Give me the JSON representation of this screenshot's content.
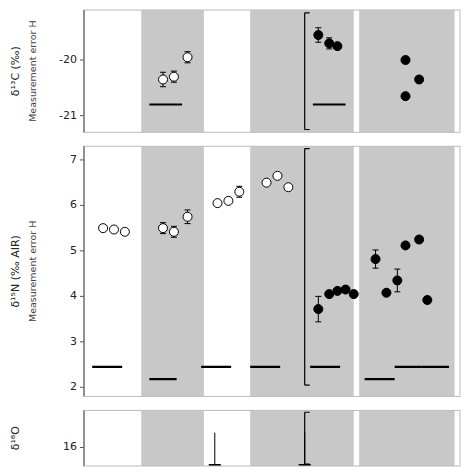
{
  "chart_data": [
    {
      "type": "scatter",
      "ylabel": "δ¹³C (‰)",
      "annotations": [
        "Measurement error H"
      ],
      "xlim": [
        0.4,
        7.3
      ],
      "ylim": [
        -21.3,
        -19.1
      ],
      "yticks": [
        -21,
        -20
      ],
      "tick_labels": "y",
      "bands": {
        "color": "#c8c8c8",
        "ranges": [
          [
            1.45,
            2.6
          ],
          [
            3.45,
            5.35
          ],
          [
            5.45,
            7.2
          ]
        ]
      },
      "series": [
        {
          "marker": "circle-open",
          "color": "#000000",
          "x": [
            1.85,
            2.05,
            2.3
          ],
          "values": [
            -20.35,
            -20.3,
            -19.95
          ],
          "errors": [
            0.13,
            0.1,
            0.1
          ]
        },
        {
          "marker": "circle",
          "color": "#000000",
          "x": [
            4.7,
            4.9,
            5.05
          ],
          "values": [
            -19.55,
            -19.7,
            -19.75
          ],
          "errors": [
            0.13,
            0.1,
            0.0
          ]
        },
        {
          "marker": "circle",
          "color": "#000000",
          "x": [
            6.3,
            6.55,
            6.3
          ],
          "values": [
            -20.0,
            -20.35,
            -20.65
          ],
          "errors": [
            0.0,
            0.0,
            0.0
          ]
        }
      ],
      "segments": [
        {
          "x": [
            1.6,
            2.2
          ],
          "y": -20.8
        },
        {
          "x": [
            4.6,
            5.2
          ],
          "y": -20.8
        }
      ],
      "bracket": {
        "x": 4.45,
        "y": [
          -21.25,
          -19.15
        ]
      }
    },
    {
      "type": "scatter",
      "ylabel": "δ¹⁵N (‰ AIR)",
      "annotations": [
        "Measurement error H"
      ],
      "xlim": [
        0.4,
        7.3
      ],
      "ylim": [
        1.8,
        7.3
      ],
      "yticks": [
        2,
        3,
        4,
        5,
        6,
        7
      ],
      "tick_labels": "y",
      "bands": {
        "color": "#c8c8c8",
        "ranges": [
          [
            1.45,
            2.6
          ],
          [
            3.45,
            5.35
          ],
          [
            5.45,
            7.2
          ]
        ]
      },
      "series": [
        {
          "marker": "circle-open",
          "color": "#000000",
          "x": [
            0.75,
            0.95,
            1.15,
            1.85,
            2.05,
            2.3,
            2.85,
            3.05,
            3.25,
            3.75,
            3.95,
            4.15
          ],
          "values": [
            5.5,
            5.47,
            5.42,
            5.5,
            5.42,
            5.75,
            6.05,
            6.1,
            6.3,
            6.5,
            6.65,
            6.4
          ],
          "errors": [
            0.0,
            0.0,
            0.0,
            0.12,
            0.12,
            0.15,
            0.0,
            0.0,
            0.12,
            0.0,
            0.0,
            0.0
          ]
        },
        {
          "marker": "circle",
          "color": "#000000",
          "x": [
            4.7,
            4.9,
            5.05,
            5.2,
            5.35,
            5.75,
            5.95,
            6.15,
            6.3,
            6.55,
            6.7
          ],
          "values": [
            3.72,
            4.05,
            4.12,
            4.15,
            4.05,
            4.82,
            4.08,
            4.35,
            5.12,
            5.25,
            3.92
          ],
          "errors": [
            0.28,
            0.0,
            0.0,
            0.0,
            0.0,
            0.2,
            0.0,
            0.25,
            0.0,
            0.0,
            0.0
          ]
        }
      ],
      "segments": [
        {
          "x": [
            0.55,
            1.1
          ],
          "y": 2.45
        },
        {
          "x": [
            1.6,
            2.1
          ],
          "y": 2.18
        },
        {
          "x": [
            2.55,
            3.1
          ],
          "y": 2.45
        },
        {
          "x": [
            3.45,
            4.0
          ],
          "y": 2.45
        },
        {
          "x": [
            4.55,
            5.1
          ],
          "y": 2.45
        },
        {
          "x": [
            5.55,
            6.1
          ],
          "y": 2.18
        },
        {
          "x": [
            6.1,
            6.6
          ],
          "y": 2.45
        },
        {
          "x": [
            6.6,
            7.1
          ],
          "y": 2.45
        }
      ],
      "bracket": {
        "x": 4.45,
        "y": [
          2.05,
          7.25
        ]
      }
    },
    {
      "type": "scatter",
      "ylabel": "δ¹⁸O",
      "xlim": [
        0.4,
        7.3
      ],
      "ylim": [
        15.5,
        17.0
      ],
      "yticks": [
        16
      ],
      "tick_labels": "y",
      "bands": {
        "color": "#c8c8c8",
        "ranges": [
          [
            1.45,
            2.6
          ],
          [
            3.45,
            5.35
          ],
          [
            5.45,
            7.2
          ]
        ]
      },
      "t_markers": [
        {
          "x": 2.8,
          "y": [
            15.5,
            16.4
          ]
        },
        {
          "x": 4.45,
          "y": [
            15.5,
            16.4
          ]
        }
      ],
      "bracket": {
        "x": 4.45,
        "y": [
          15.55,
          16.95
        ]
      }
    }
  ]
}
